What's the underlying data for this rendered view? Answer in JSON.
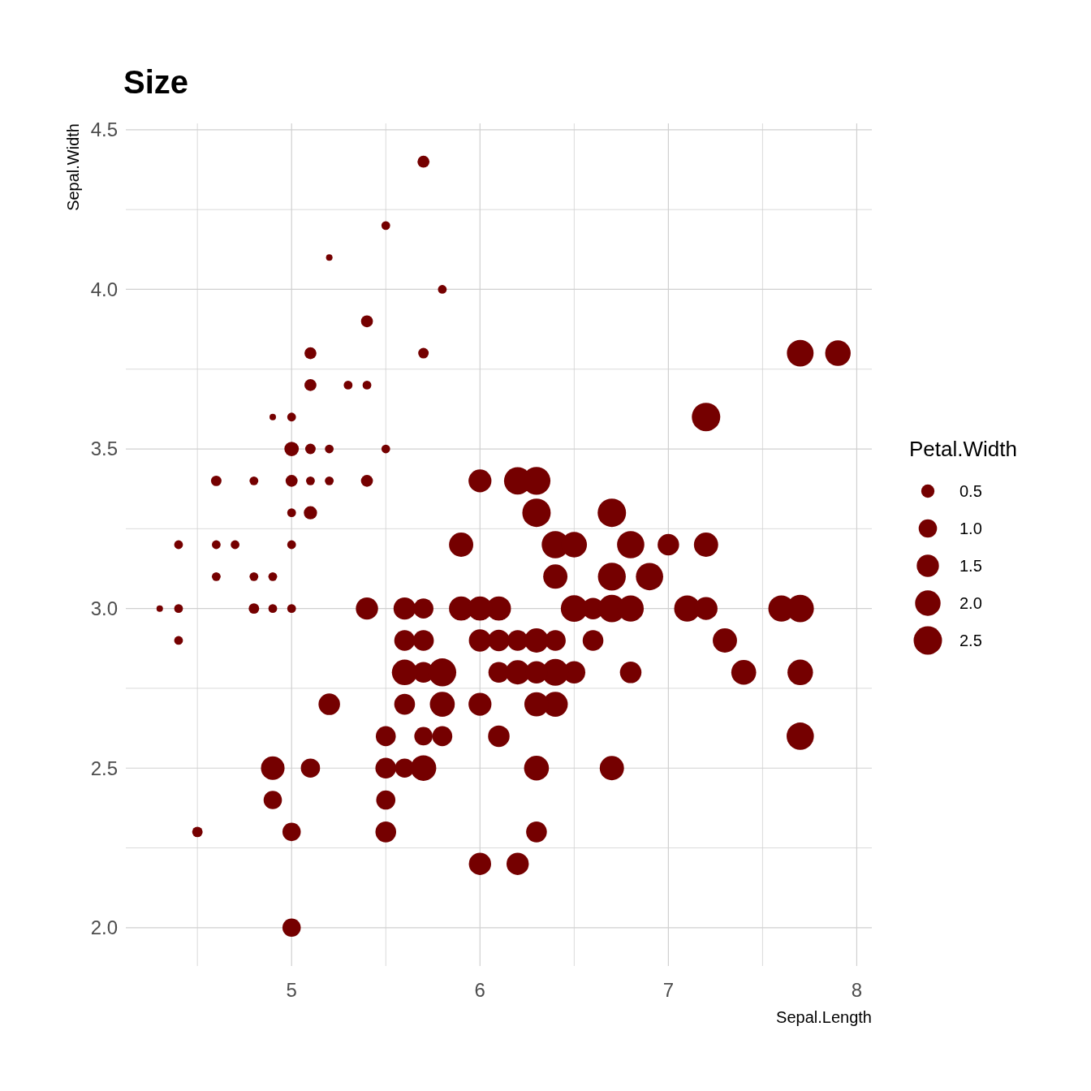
{
  "chart_data": {
    "type": "bubble",
    "title": "Size",
    "xlabel": "Sepal.Length",
    "ylabel": "Sepal.Width",
    "legend_title": "Petal.Width",
    "xlim": [
      4.12,
      8.08
    ],
    "xticks": [
      {
        "value": 4.5,
        "label": null
      },
      5,
      {
        "value": 5.5,
        "label": null
      },
      6,
      {
        "value": 6.5,
        "label": null
      },
      7,
      {
        "value": 7.5,
        "label": null
      },
      8
    ],
    "ylim": [
      1.88,
      4.52
    ],
    "yticks": [
      {
        "value": 2,
        "label": "2.0"
      },
      {
        "value": 2.25,
        "label": null
      },
      {
        "value": 2.5,
        "label": "2.5"
      },
      {
        "value": 2.75,
        "label": null
      },
      {
        "value": 3,
        "label": "3.0"
      },
      {
        "value": 3.25,
        "label": null
      },
      {
        "value": 3.5,
        "label": "3.5"
      },
      {
        "value": 3.75,
        "label": null
      },
      {
        "value": 4,
        "label": "4.0"
      },
      {
        "value": 4.25,
        "label": null
      },
      {
        "value": 4.5,
        "label": "4.5"
      }
    ],
    "grid": true,
    "size_legend": [
      0.5,
      {
        "value": 1,
        "label": "1.0"
      },
      1.5,
      {
        "value": 2,
        "label": "2.0"
      },
      2.5
    ],
    "series": [
      {
        "color": "#750000",
        "x": [
          5.1,
          4.9,
          4.7,
          4.6,
          5.0,
          5.4,
          4.6,
          5.0,
          4.4,
          4.9,
          5.4,
          4.8,
          4.8,
          4.3,
          5.8,
          5.7,
          5.7,
          5.1,
          5.4,
          5.1,
          5.1,
          5.0,
          5.2,
          5.2,
          4.8,
          5.2,
          5.5,
          5.0,
          5.5,
          4.9,
          4.4,
          5.1,
          5.0,
          4.5,
          4.4,
          4.6,
          5.3,
          5.0,
          7.0,
          6.4,
          6.9,
          5.5,
          6.5,
          5.7,
          6.3,
          4.9,
          6.6,
          5.2,
          5.0,
          5.9,
          6.0,
          6.1,
          5.6,
          6.7,
          5.6,
          5.8,
          6.2,
          5.6,
          5.9,
          6.1,
          6.3,
          6.4,
          6.6,
          6.8,
          6.7,
          6.0,
          5.7,
          5.5,
          6.0,
          5.4,
          6.0,
          6.3,
          5.5,
          5.5,
          6.1,
          5.8,
          5.0,
          5.6,
          5.7,
          5.7,
          6.2,
          5.1,
          6.3,
          7.1,
          6.5,
          7.6,
          4.9,
          7.3,
          6.7,
          7.2,
          6.5,
          6.4,
          6.8,
          5.7,
          5.8,
          7.7,
          7.7,
          5.6,
          7.7,
          6.3,
          6.7,
          7.2,
          6.2,
          6.4,
          7.2,
          7.4,
          7.9,
          6.3,
          6.1,
          7.7,
          6.3,
          6.4,
          6.0,
          6.8,
          6.2
        ],
        "values": [
          3.5,
          3.0,
          3.2,
          3.1,
          3.6,
          3.9,
          3.4,
          3.4,
          2.9,
          3.1,
          3.7,
          3.4,
          3.0,
          3.0,
          4.0,
          4.4,
          3.8,
          3.8,
          3.4,
          3.7,
          3.3,
          3.0,
          3.5,
          3.4,
          3.1,
          4.1,
          4.2,
          3.2,
          3.5,
          3.6,
          3.0,
          3.4,
          3.5,
          2.3,
          3.2,
          3.2,
          3.7,
          3.3,
          3.2,
          3.2,
          3.1,
          2.3,
          2.8,
          2.8,
          3.3,
          2.4,
          2.9,
          2.7,
          2.0,
          3.0,
          2.2,
          2.9,
          2.9,
          3.1,
          3.0,
          2.7,
          2.2,
          2.5,
          3.2,
          2.8,
          2.5,
          2.9,
          3.0,
          2.8,
          3.0,
          2.9,
          2.6,
          2.4,
          2.7,
          3.0,
          3.4,
          2.3,
          2.5,
          2.6,
          3.0,
          2.6,
          2.3,
          2.7,
          3.0,
          2.9,
          2.9,
          2.5,
          2.9,
          3.0,
          3.0,
          3.0,
          2.5,
          2.9,
          2.5,
          3.6,
          3.2,
          2.7,
          3.0,
          2.5,
          2.8,
          3.8,
          2.6,
          2.8,
          2.8,
          2.7,
          3.3,
          3.2,
          2.8,
          2.8,
          3.0,
          2.8,
          3.8,
          2.8,
          2.6,
          3.0,
          3.4,
          3.1,
          3.0,
          3.2,
          3.4
        ],
        "sizes": [
          0.3,
          0.2,
          0.2,
          0.2,
          0.2,
          0.4,
          0.3,
          0.4,
          0.2,
          0.2,
          0.2,
          0.2,
          0.3,
          0.1,
          0.2,
          0.4,
          0.3,
          0.4,
          0.4,
          0.4,
          0.5,
          0.2,
          0.2,
          0.2,
          0.2,
          0.1,
          0.2,
          0.2,
          0.2,
          0.1,
          0.2,
          0.2,
          0.6,
          0.3,
          0.2,
          0.2,
          0.2,
          0.2,
          1.4,
          2.3,
          2.3,
          1.3,
          1.5,
          1.3,
          2.5,
          1.0,
          1.3,
          1.4,
          1.0,
          1.8,
          1.5,
          1.4,
          1.3,
          2.4,
          1.5,
          1.9,
          1.5,
          1.1,
          1.8,
          1.3,
          1.9,
          1.3,
          1.4,
          1.4,
          2.3,
          1.5,
          1.0,
          1.1,
          1.6,
          1.5,
          1.6,
          1.3,
          1.3,
          1.2,
          1.8,
          1.2,
          1.0,
          1.3,
          1.2,
          1.3,
          1.3,
          1.1,
          1.8,
          2.1,
          2.2,
          2.1,
          1.7,
          1.8,
          1.8,
          2.5,
          2.0,
          1.9,
          2.1,
          2.0,
          2.4,
          2.2,
          2.3,
          2.0,
          2.0,
          1.8,
          2.5,
          1.8,
          1.8,
          2.2,
          1.6,
          1.9,
          2.0,
          1.5,
          1.4,
          2.3,
          2.4,
          1.8,
          1.8,
          2.3,
          2.3
        ]
      }
    ]
  }
}
